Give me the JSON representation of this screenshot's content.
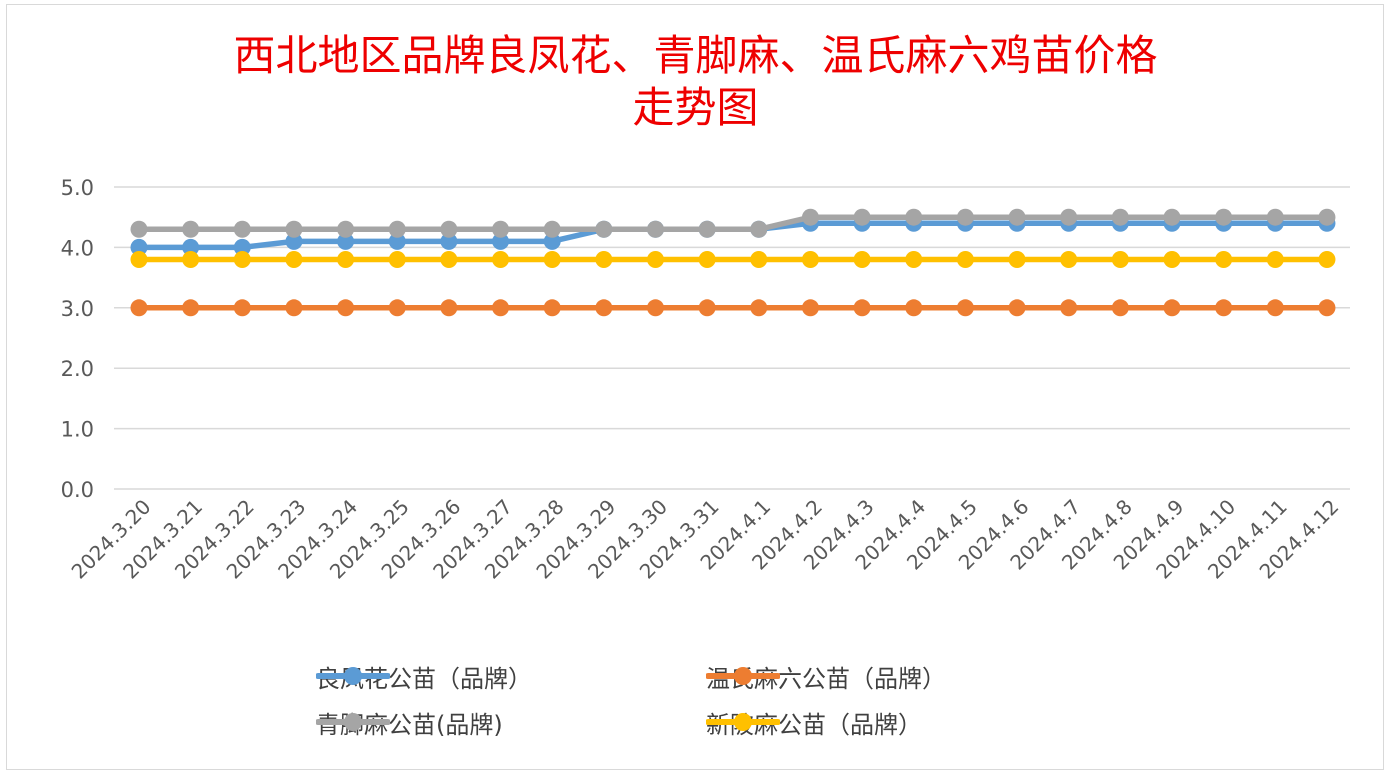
{
  "chart_data": {
    "type": "line",
    "title_lines": [
      "西北地区品牌良凤花、青脚麻、温氏麻六鸡苗价格",
      "走势图"
    ],
    "categories": [
      "2024.3.20",
      "2024.3.21",
      "2024.3.22",
      "2024.3.23",
      "2024.3.24",
      "2024.3.25",
      "2024.3.26",
      "2024.3.27",
      "2024.3.28",
      "2024.3.29",
      "2024.3.30",
      "2024.3.31",
      "2024.4.1",
      "2024.4.2",
      "2024.4.3",
      "2024.4.4",
      "2024.4.5",
      "2024.4.6",
      "2024.4.7",
      "2024.4.8",
      "2024.4.9",
      "2024.4.10",
      "2024.4.11",
      "2024.4.12"
    ],
    "y_ticks": [
      "0.0",
      "1.0",
      "2.0",
      "3.0",
      "4.0",
      "5.0"
    ],
    "ylim": [
      0,
      5
    ],
    "grid": true,
    "legend_position": "bottom",
    "series": [
      {
        "name": "良凤花公苗（品牌）",
        "color": "#5b9bd5",
        "values": [
          4.0,
          4.0,
          4.0,
          4.1,
          4.1,
          4.1,
          4.1,
          4.1,
          4.1,
          4.3,
          4.3,
          4.3,
          4.3,
          4.4,
          4.4,
          4.4,
          4.4,
          4.4,
          4.4,
          4.4,
          4.4,
          4.4,
          4.4,
          4.4
        ]
      },
      {
        "name": "温氏麻六公苗（品牌）",
        "color": "#ed7d31",
        "values": [
          3.0,
          3.0,
          3.0,
          3.0,
          3.0,
          3.0,
          3.0,
          3.0,
          3.0,
          3.0,
          3.0,
          3.0,
          3.0,
          3.0,
          3.0,
          3.0,
          3.0,
          3.0,
          3.0,
          3.0,
          3.0,
          3.0,
          3.0,
          3.0
        ]
      },
      {
        "name": "青脚麻公苗(品牌)",
        "color": "#a5a5a5",
        "values": [
          4.3,
          4.3,
          4.3,
          4.3,
          4.3,
          4.3,
          4.3,
          4.3,
          4.3,
          4.3,
          4.3,
          4.3,
          4.3,
          4.5,
          4.5,
          4.5,
          4.5,
          4.5,
          4.5,
          4.5,
          4.5,
          4.5,
          4.5,
          4.5
        ]
      },
      {
        "name": "新陂麻公苗（品牌）",
        "color": "#ffc000",
        "values": [
          3.8,
          3.8,
          3.8,
          3.8,
          3.8,
          3.8,
          3.8,
          3.8,
          3.8,
          3.8,
          3.8,
          3.8,
          3.8,
          3.8,
          3.8,
          3.8,
          3.8,
          3.8,
          3.8,
          3.8,
          3.8,
          3.8,
          3.8,
          3.8
        ]
      }
    ],
    "draw_order": [
      0,
      2,
      3,
      1
    ]
  },
  "legend": {
    "items": [
      {
        "label": "良凤花公苗（品牌）"
      },
      {
        "label": "温氏麻六公苗（品牌）"
      },
      {
        "label": "青脚麻公苗(品牌)"
      },
      {
        "label": "新陂麻公苗（品牌）"
      }
    ]
  }
}
